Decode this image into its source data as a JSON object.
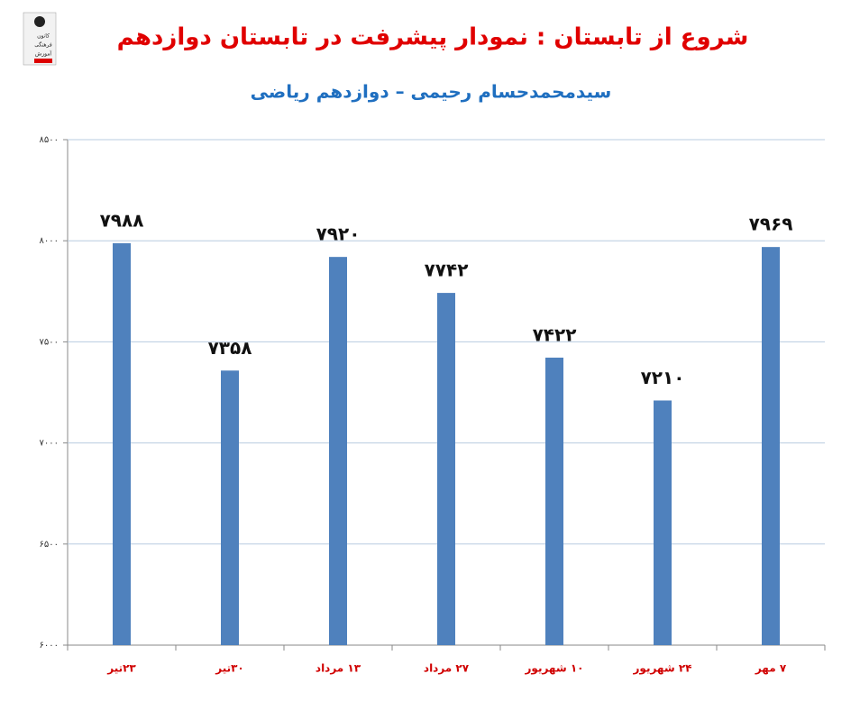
{
  "logo": [
    "کانون",
    "فرهنگی",
    "آموزش"
  ],
  "chart_data": {
    "type": "bar",
    "title": "شروع از تابستان : نمودار پیشرفت در تابستان دوازدهم",
    "subtitle": "سیدمحمدحسام رحیمی – دوازدهم ریاضی",
    "categories": [
      "۲۳تیر",
      "۳۰تیر",
      "۱۳ مرداد",
      "۲۷ مرداد",
      "۱۰ شهریور",
      "۲۴ شهریور",
      "۷ مهر"
    ],
    "values": [
      7988,
      7358,
      7920,
      7742,
      7422,
      7210,
      7969
    ],
    "value_labels": [
      "۷۹۸۸",
      "۷۳۵۸",
      "۷۹۲۰",
      "۷۷۴۲",
      "۷۴۲۲",
      "۷۲۱۰",
      "۷۹۶۹"
    ],
    "color": "#4f81bd",
    "ylim": [
      6000,
      8500
    ],
    "yticks": [
      {
        "value": 6000,
        "label": "۶۰۰۰"
      },
      {
        "value": 6500,
        "label": "۶۵۰۰"
      },
      {
        "value": 7000,
        "label": "۷۰۰۰"
      },
      {
        "value": 7500,
        "label": "۷۵۰۰"
      },
      {
        "value": 8000,
        "label": "۸۰۰۰"
      },
      {
        "value": 8500,
        "label": "۸۵۰۰"
      }
    ],
    "grid": true
  }
}
